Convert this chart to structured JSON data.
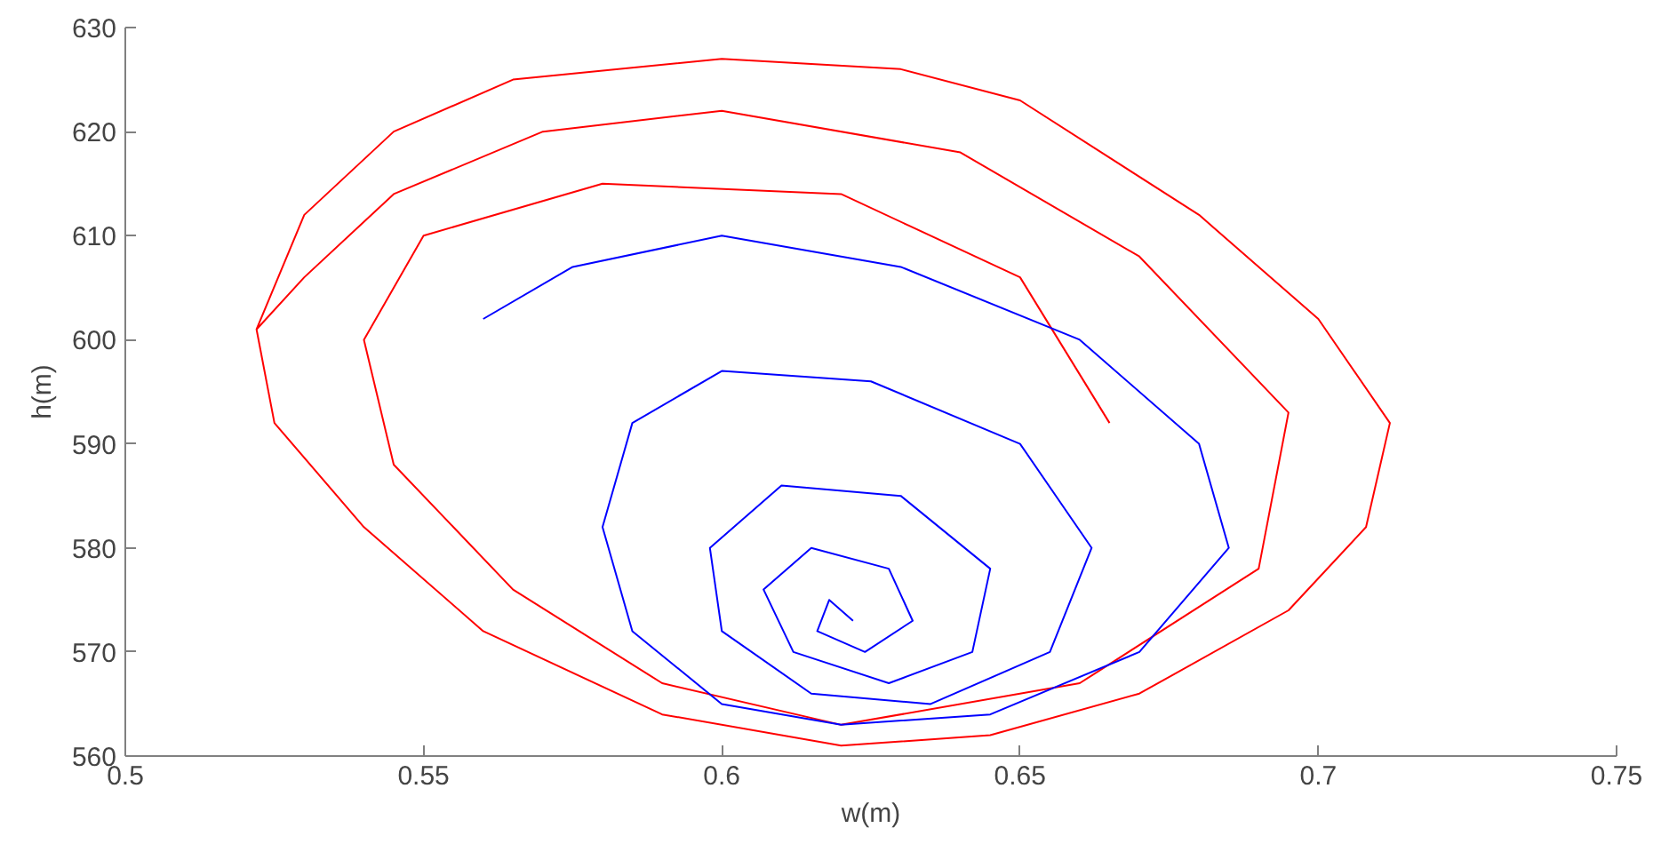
{
  "chart_data": {
    "type": "line",
    "xlabel": "w(m)",
    "ylabel": "h(m)",
    "xlim": [
      0.5,
      0.75
    ],
    "ylim": [
      560,
      630
    ],
    "xticks": [
      0.5,
      0.55,
      0.6,
      0.65,
      0.7,
      0.75
    ],
    "yticks": [
      560,
      570,
      580,
      590,
      600,
      610,
      620,
      630
    ],
    "series": [
      {
        "color": "#ff0000",
        "x": [
          0.522,
          0.53,
          0.545,
          0.565,
          0.6,
          0.63,
          0.65,
          0.68,
          0.7,
          0.712,
          0.708,
          0.695,
          0.67,
          0.645,
          0.62,
          0.59,
          0.56,
          0.54,
          0.525,
          0.522,
          0.53,
          0.545,
          0.57,
          0.6,
          0.64,
          0.67,
          0.695,
          0.69,
          0.66,
          0.62,
          0.59,
          0.565,
          0.545,
          0.54,
          0.55,
          0.58,
          0.62,
          0.65,
          0.665
        ],
        "values": [
          601,
          612,
          620,
          625,
          627,
          626,
          623,
          612,
          602,
          592,
          582,
          574,
          566,
          562,
          561,
          564,
          572,
          582,
          592,
          601,
          606,
          614,
          620,
          622,
          618,
          608,
          593,
          578,
          567,
          563,
          567,
          576,
          588,
          600,
          610,
          615,
          614,
          606,
          592
        ]
      },
      {
        "color": "#0000ff",
        "x": [
          0.56,
          0.575,
          0.6,
          0.63,
          0.66,
          0.68,
          0.685,
          0.67,
          0.645,
          0.62,
          0.6,
          0.585,
          0.58,
          0.585,
          0.6,
          0.625,
          0.65,
          0.662,
          0.655,
          0.635,
          0.615,
          0.6,
          0.598,
          0.61,
          0.63,
          0.645,
          0.642,
          0.628,
          0.612,
          0.607,
          0.615,
          0.628,
          0.632,
          0.624,
          0.616,
          0.618,
          0.622
        ],
        "values": [
          602,
          607,
          610,
          607,
          600,
          590,
          580,
          570,
          564,
          563,
          565,
          572,
          582,
          592,
          597,
          596,
          590,
          580,
          570,
          565,
          566,
          572,
          580,
          586,
          585,
          578,
          570,
          567,
          570,
          576,
          580,
          578,
          573,
          570,
          572,
          575,
          573
        ]
      }
    ]
  }
}
